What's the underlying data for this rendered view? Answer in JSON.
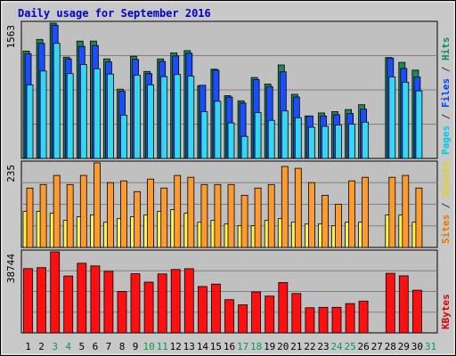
{
  "chart_data": {
    "type": "bar",
    "title": "Daily usage for September 2016",
    "x": [
      "1",
      "2",
      "3",
      "4",
      "5",
      "6",
      "7",
      "8",
      "9",
      "10",
      "11",
      "12",
      "13",
      "14",
      "15",
      "16",
      "17",
      "18",
      "19",
      "20",
      "21",
      "22",
      "23",
      "24",
      "25",
      "26",
      "27",
      "28",
      "29",
      "30",
      "31"
    ],
    "weekend_days": [
      3,
      4,
      10,
      11,
      17,
      18,
      24,
      25,
      31
    ],
    "panels": [
      {
        "name": "hits-files-pages",
        "ymax_label": "1563",
        "ymax": 1563,
        "ylabel_parts": [
          {
            "text": "Pages",
            "color": "#00c8e8"
          },
          {
            "text": " / ",
            "color": "#333333"
          },
          {
            "text": "Files",
            "color": "#0040ff"
          },
          {
            "text": " / ",
            "color": "#333333"
          },
          {
            "text": "Hits",
            "color": "#0f9060"
          }
        ],
        "series": [
          {
            "name": "Hits",
            "color": "#1e8a52",
            "values": [
              1240,
              1375,
              1563,
              1170,
              1355,
              1355,
              1150,
              800,
              1180,
              1005,
              1150,
              1220,
              1245,
              840,
              1030,
              725,
              665,
              935,
              860,
              1080,
              740,
              490,
              525,
              540,
              565,
              620,
              0,
              1165,
              1110,
              1020,
              0
            ]
          },
          {
            "name": "Files",
            "color": "#1a4dff",
            "values": [
              1210,
              1330,
              1540,
              1150,
              1295,
              1305,
              1115,
              775,
              1145,
              980,
              1120,
              1185,
              1215,
              845,
              1020,
              710,
              640,
              910,
              830,
              1000,
              710,
              490,
              490,
              505,
              520,
              570,
              0,
              1160,
              1040,
              940,
              0
            ]
          },
          {
            "name": "Pages",
            "color": "#33d6f5",
            "values": [
              850,
              1010,
              1330,
              980,
              1085,
              1035,
              975,
              500,
              960,
              850,
              945,
              970,
              950,
              540,
              660,
              410,
              255,
              530,
              440,
              550,
              470,
              360,
              370,
              385,
              395,
              420,
              0,
              940,
              880,
              780,
              0
            ]
          }
        ]
      },
      {
        "name": "sites-visits",
        "ymax_label": "235",
        "ymax": 235,
        "ylabel_parts": [
          {
            "text": "Sites",
            "color": "#e67800"
          },
          {
            "text": " / ",
            "color": "#333333"
          },
          {
            "text": "Visits",
            "color": "#e6d600"
          }
        ],
        "series": [
          {
            "name": "Visits",
            "color": "#fff44f",
            "values": [
              100,
              100,
              95,
              75,
              85,
              90,
              70,
              80,
              85,
              90,
              100,
              105,
              95,
              70,
              75,
              65,
              60,
              60,
              75,
              80,
              70,
              65,
              65,
              60,
              70,
              70,
              0,
              90,
              90,
              70,
              0
            ]
          },
          {
            "name": "Sites",
            "color": "#ff9a2e",
            "values": [
              165,
              175,
              200,
              175,
              200,
              235,
              180,
              185,
              155,
              190,
              165,
              200,
              195,
              175,
              175,
              175,
              145,
              165,
              175,
              225,
              220,
              180,
              145,
              120,
              185,
              195,
              0,
              195,
              200,
              165,
              0
            ]
          }
        ]
      },
      {
        "name": "kbytes",
        "ymax_label": "38744",
        "ymax": 38744,
        "ylabel_parts": [
          {
            "text": "KBytes",
            "color": "#e00000"
          }
        ],
        "series": [
          {
            "name": "KBytes",
            "color": "#ff1010",
            "values": [
              30740,
              31200,
              38744,
              27200,
              33300,
              32000,
              29400,
              19800,
              28250,
              24250,
              28200,
              30300,
              30700,
              22200,
              23350,
              15900,
              13400,
              19600,
              17600,
              24100,
              18800,
              12000,
              12200,
              12200,
              14000,
              15200,
              0,
              28500,
              27300,
              20400,
              0
            ]
          }
        ]
      }
    ]
  }
}
